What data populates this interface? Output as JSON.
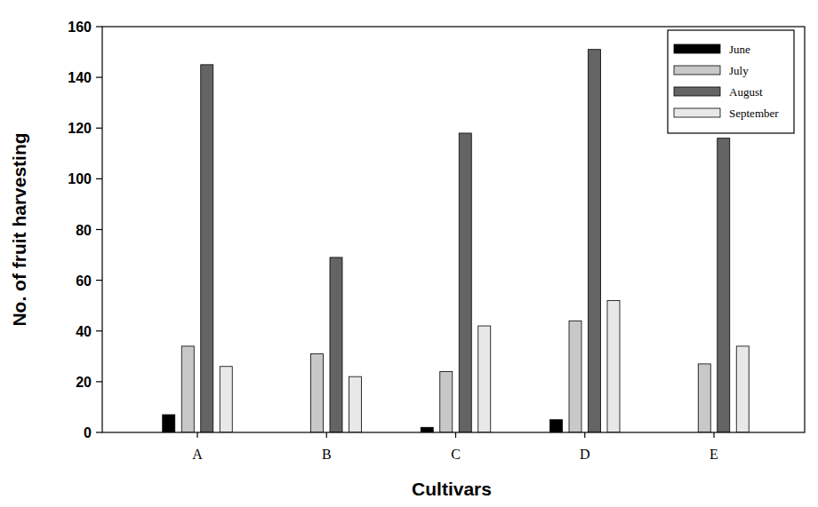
{
  "chart_data": {
    "type": "bar",
    "x_label": "Cultivars",
    "y_label": "No. of fruit harvesting",
    "categories": [
      "A",
      "B",
      "C",
      "D",
      "E"
    ],
    "series": [
      {
        "name": "June",
        "color": "#000000",
        "values": [
          7,
          0,
          2,
          5,
          0
        ]
      },
      {
        "name": "July",
        "color": "#c8c8c8",
        "values": [
          34,
          31,
          24,
          44,
          27
        ]
      },
      {
        "name": "August",
        "color": "#646464",
        "values": [
          145,
          69,
          118,
          151,
          116
        ]
      },
      {
        "name": "September",
        "color": "#e8e8e8",
        "values": [
          26,
          22,
          42,
          52,
          34
        ]
      }
    ],
    "ylim": [
      0,
      160
    ],
    "yticks": [
      0,
      20,
      40,
      60,
      80,
      100,
      120,
      140,
      160
    ],
    "grid": false,
    "legend": "upper right"
  }
}
